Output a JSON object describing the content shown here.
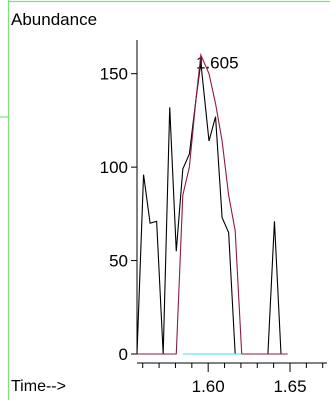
{
  "chart_data": {
    "type": "line",
    "title": "",
    "ylabel": "Abundance",
    "xlabel": "Time-->",
    "ylim": [
      0,
      160
    ],
    "xlim": [
      1.5565,
      1.672
    ],
    "y_ticks": [
      0,
      50,
      100,
      150
    ],
    "x_tick_labels": [
      {
        "value": 1.6,
        "label": "1.60"
      },
      {
        "value": 1.65,
        "label": "1.65"
      }
    ],
    "annotation": {
      "label": "1.605",
      "x": 1.605,
      "y": 155
    },
    "series": [
      {
        "color": "#000000",
        "points": [
          [
            1.5565,
            0
          ],
          [
            1.5605,
            96
          ],
          [
            1.5645,
            70
          ],
          [
            1.5685,
            71
          ],
          [
            1.5725,
            0
          ],
          [
            1.5765,
            132
          ],
          [
            1.5805,
            55
          ],
          [
            1.5845,
            99
          ],
          [
            1.5885,
            107
          ],
          [
            1.5925,
            136
          ],
          [
            1.5955,
            156
          ],
          [
            1.6005,
            114
          ],
          [
            1.6045,
            127
          ],
          [
            1.6085,
            73
          ],
          [
            1.6125,
            65
          ],
          [
            1.6165,
            0
          ],
          [
            1.6205,
            0
          ],
          [
            1.6245,
            0
          ],
          [
            1.6285,
            0
          ],
          [
            1.6325,
            0
          ],
          [
            1.6365,
            0
          ],
          [
            1.6405,
            71
          ],
          [
            1.6445,
            0
          ],
          [
            1.6485,
            0
          ]
        ]
      },
      {
        "color": "#8b1a4a",
        "points": [
          [
            1.5565,
            0
          ],
          [
            1.5805,
            0
          ],
          [
            1.5845,
            85
          ],
          [
            1.5885,
            100
          ],
          [
            1.5925,
            136
          ],
          [
            1.5955,
            160
          ],
          [
            1.6005,
            150
          ],
          [
            1.6045,
            134
          ],
          [
            1.6085,
            114
          ],
          [
            1.6125,
            85
          ],
          [
            1.6165,
            66
          ],
          [
            1.6205,
            0
          ],
          [
            1.6485,
            0
          ]
        ]
      },
      {
        "color": "#40e0f0",
        "points": [
          [
            1.5845,
            0
          ],
          [
            1.6205,
            0
          ]
        ]
      }
    ],
    "grid": false,
    "legend": "none"
  },
  "frame_colors": {
    "axis": "#000000",
    "green_guides": "#7ee37e",
    "red_marker": "#e02020"
  }
}
